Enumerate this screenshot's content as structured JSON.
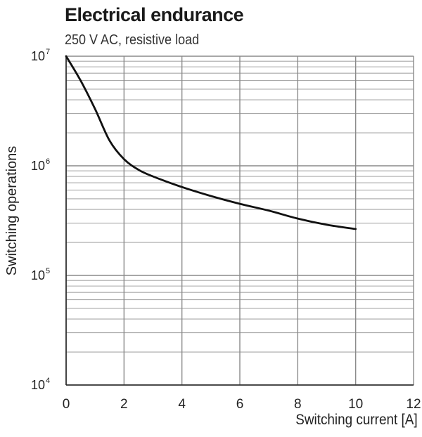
{
  "chart_data": {
    "type": "line",
    "title": "Electrical endurance",
    "subtitle": "250 V AC, resistive load",
    "xlabel": "Switching current [A]",
    "ylabel": "Switching operations",
    "xlim": [
      0,
      12
    ],
    "ylim": [
      10000,
      10000000
    ],
    "y_scale": "log",
    "grid": true,
    "x_ticks": [
      "0",
      "2",
      "4",
      "6",
      "8",
      "10",
      "12"
    ],
    "y_ticks": [
      {
        "base": "10",
        "exp": "4"
      },
      {
        "base": "10",
        "exp": "5"
      },
      {
        "base": "10",
        "exp": "6"
      },
      {
        "base": "10",
        "exp": "7"
      }
    ],
    "series": [
      {
        "x": [
          0,
          0.5,
          1,
          1.5,
          2,
          2.5,
          3,
          4,
          5,
          6,
          7,
          8,
          9,
          10
        ],
        "y": [
          10000000,
          6000000,
          3300000,
          1700000,
          1150000,
          920000,
          800000,
          640000,
          530000,
          450000,
          390000,
          330000,
          290000,
          265000
        ]
      }
    ]
  }
}
